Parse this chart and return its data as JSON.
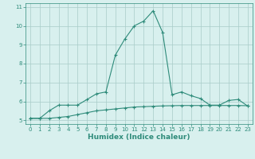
{
  "xlabel": "Humidex (Indice chaleur)",
  "x_values": [
    0,
    1,
    2,
    3,
    4,
    5,
    6,
    7,
    8,
    9,
    10,
    11,
    12,
    13,
    14,
    15,
    16,
    17,
    18,
    19,
    20,
    21,
    22,
    23
  ],
  "line1_y": [
    5.1,
    5.1,
    5.5,
    5.8,
    5.8,
    5.8,
    6.1,
    6.4,
    6.5,
    8.45,
    9.3,
    10.0,
    10.25,
    10.8,
    9.65,
    6.35,
    6.5,
    6.3,
    6.15,
    5.8,
    5.8,
    6.05,
    6.1,
    5.75
  ],
  "line2_y": [
    5.1,
    5.1,
    5.1,
    5.15,
    5.2,
    5.3,
    5.4,
    5.5,
    5.55,
    5.6,
    5.65,
    5.7,
    5.72,
    5.74,
    5.76,
    5.77,
    5.78,
    5.78,
    5.78,
    5.78,
    5.78,
    5.78,
    5.78,
    5.77
  ],
  "line_color": "#2e8b7a",
  "bg_color": "#d8f0ee",
  "grid_color": "#a8ccc8",
  "ylim": [
    4.8,
    11.2
  ],
  "xlim": [
    -0.5,
    23.5
  ],
  "yticks": [
    5,
    6,
    7,
    8,
    9,
    10,
    11
  ],
  "xticks": [
    0,
    1,
    2,
    3,
    4,
    5,
    6,
    7,
    8,
    9,
    10,
    11,
    12,
    13,
    14,
    15,
    16,
    17,
    18,
    19,
    20,
    21,
    22,
    23
  ]
}
